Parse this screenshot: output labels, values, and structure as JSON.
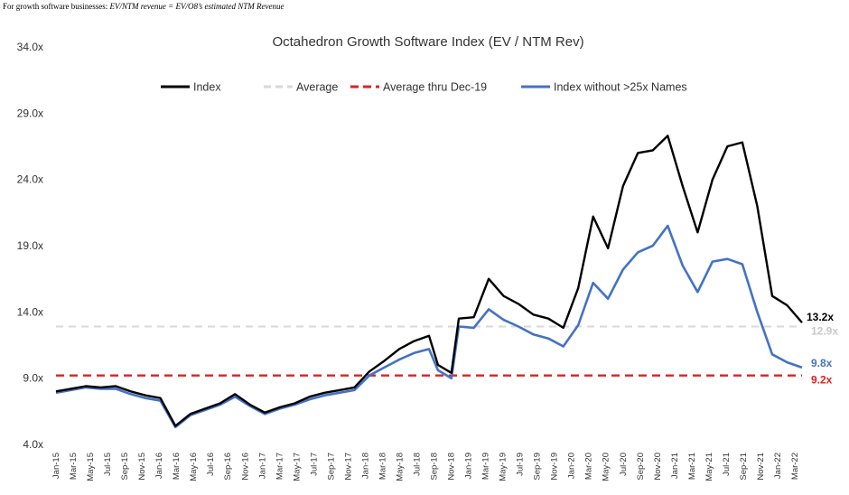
{
  "note": {
    "prefix": "For growth software businesses: ",
    "italic": "EV/NTM revenue = EV/O8’s estimated NTM Revenue"
  },
  "chart_data": {
    "type": "line",
    "title": "Octahedron Growth Software Index (EV / NTM Rev)",
    "ylim": [
      4.0,
      34.0
    ],
    "yticks": [
      "4.0x",
      "9.0x",
      "14.0x",
      "19.0x",
      "24.0x",
      "29.0x",
      "34.0x"
    ],
    "ytick_values": [
      4,
      9,
      14,
      19,
      24,
      29,
      34
    ],
    "grid": false,
    "legend_position": "top",
    "x_labels": [
      "Jan-15",
      "Mar-15",
      "May-15",
      "Jul-15",
      "Sep-15",
      "Nov-15",
      "Jan-16",
      "Mar-16",
      "May-16",
      "Jul-16",
      "Sep-16",
      "Nov-16",
      "Jan-17",
      "Mar-17",
      "May-17",
      "Jul-17",
      "Sep-17",
      "Nov-17",
      "Jan-18",
      "Mar-18",
      "May-18",
      "Jul-18",
      "Sep-18",
      "Nov-18",
      "Jan-19",
      "Mar-19",
      "May-19",
      "Jul-19",
      "Sep-19",
      "Nov-19",
      "Jan-20",
      "Mar-20",
      "May-20",
      "Jul-20",
      "Sep-20",
      "Nov-20",
      "Jan-21",
      "Mar-21",
      "May-21",
      "Jul-21",
      "Sep-21",
      "Nov-21",
      "Jan-22",
      "Mar-22"
    ],
    "series": [
      {
        "name": "Index",
        "color": "#000000",
        "style": "solid",
        "end_label": "13.2x",
        "values": [
          8.0,
          8.2,
          8.4,
          8.3,
          8.4,
          8.0,
          7.7,
          7.5,
          5.4,
          6.3,
          6.7,
          7.1,
          7.8,
          7.0,
          6.4,
          6.8,
          7.1,
          7.6,
          7.9,
          8.1,
          8.3,
          9.5,
          10.3,
          11.2,
          11.8,
          12.2,
          10.0,
          9.4,
          13.5,
          13.6,
          16.5,
          15.2,
          14.6,
          13.8,
          13.5,
          12.8,
          15.8,
          21.2,
          18.8,
          23.5,
          26.0,
          26.2,
          27.3,
          23.5,
          20.0,
          24.0,
          26.5,
          26.8,
          22.0,
          15.2,
          14.5,
          13.2
        ],
        "x_index": [
          0,
          1,
          2,
          3,
          4,
          5,
          6,
          7,
          8,
          9,
          10,
          11,
          12,
          13,
          14,
          15,
          16,
          17,
          18,
          19,
          20,
          21,
          22,
          23,
          24,
          25,
          25.6,
          26.5,
          27,
          28,
          29,
          30,
          31,
          32,
          33,
          34,
          35,
          36,
          37,
          38,
          39,
          40,
          41,
          42,
          43,
          44,
          45,
          46,
          47,
          48,
          49,
          50
        ]
      },
      {
        "name": "Average",
        "color": "#d9d9d9",
        "style": "dashed",
        "end_label": "12.9x",
        "constant": 12.9
      },
      {
        "name": "Average thru Dec-19",
        "color": "#e02020",
        "style": "dashed",
        "end_label": "9.2x",
        "constant": 9.2
      },
      {
        "name": "Index without >25x Names",
        "color": "#4472c4",
        "style": "solid",
        "end_label": "9.8x",
        "values": [
          7.9,
          8.1,
          8.3,
          8.2,
          8.2,
          7.8,
          7.5,
          7.3,
          5.3,
          6.2,
          6.6,
          7.0,
          7.6,
          6.9,
          6.3,
          6.7,
          7.0,
          7.4,
          7.7,
          7.9,
          8.1,
          9.2,
          9.8,
          10.4,
          10.9,
          11.2,
          9.6,
          9.0,
          12.9,
          12.8,
          14.2,
          13.4,
          12.9,
          12.3,
          12.0,
          11.4,
          13.0,
          16.2,
          15.0,
          17.2,
          18.5,
          19.0,
          20.5,
          17.5,
          15.5,
          17.8,
          18.0,
          17.6,
          14.0,
          10.8,
          10.2,
          9.8
        ],
        "x_index": [
          0,
          1,
          2,
          3,
          4,
          5,
          6,
          7,
          8,
          9,
          10,
          11,
          12,
          13,
          14,
          15,
          16,
          17,
          18,
          19,
          20,
          21,
          22,
          23,
          24,
          25,
          25.6,
          26.5,
          27,
          28,
          29,
          30,
          31,
          32,
          33,
          34,
          35,
          36,
          37,
          38,
          39,
          40,
          41,
          42,
          43,
          44,
          45,
          46,
          47,
          48,
          49,
          50
        ]
      }
    ]
  }
}
